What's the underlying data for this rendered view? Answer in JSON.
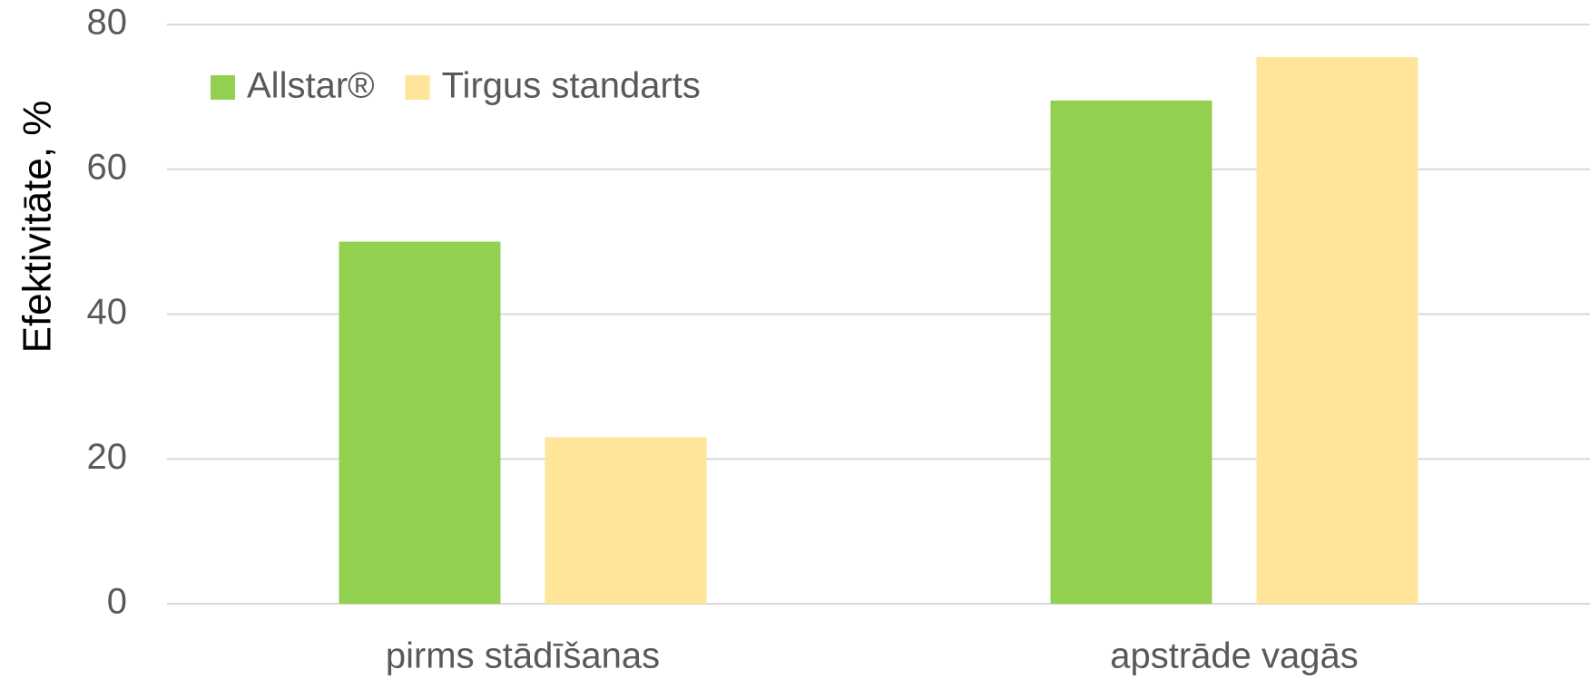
{
  "chart_data": {
    "type": "bar",
    "y_label": "Efektivitāte, %",
    "categories": [
      "pirms stādīšanas",
      "apstrāde vagās"
    ],
    "series": [
      {
        "name": "Allstar®",
        "color": "#92d050",
        "values": [
          50,
          69.5
        ]
      },
      {
        "name": "Tirgus standarts",
        "color": "#fee599",
        "values": [
          23,
          75.5
        ]
      }
    ],
    "ylim": [
      0,
      80
    ],
    "yticks": [
      0,
      20,
      40,
      60,
      80
    ],
    "grid": true,
    "legend": "upper left"
  }
}
